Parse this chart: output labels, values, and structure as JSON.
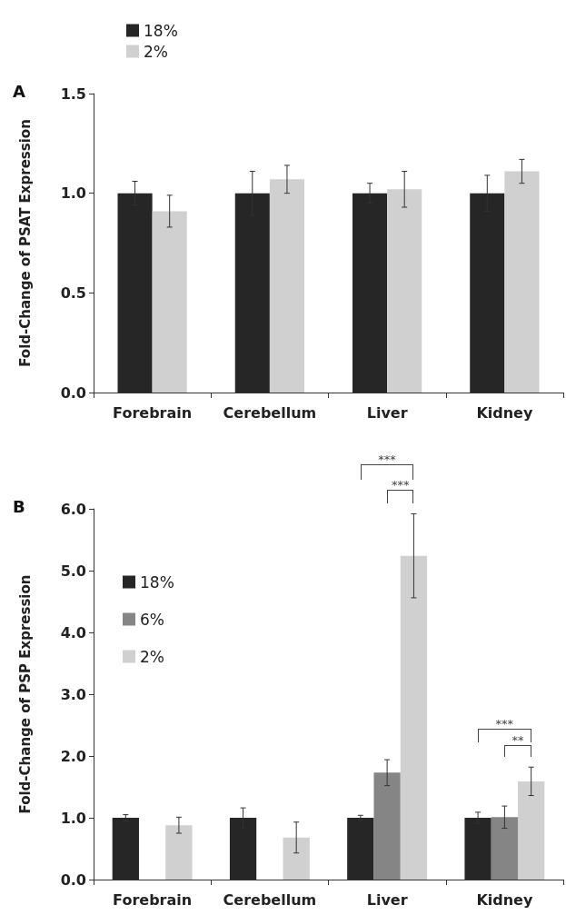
{
  "chart_data": [
    {
      "type": "bar",
      "ylabel": "Fold-Change of PSAT Expression",
      "categories": [
        "Forebrain",
        "Cerebellum",
        "Liver",
        "Kidney"
      ],
      "series": [
        {
          "name": "18%",
          "color": "#262626",
          "values": [
            1.0,
            1.0,
            1.0,
            1.0
          ],
          "errors": [
            0.06,
            0.11,
            0.05,
            0.09
          ]
        },
        {
          "name": "2%",
          "color": "#d0d0d0",
          "values": [
            0.91,
            1.07,
            1.02,
            1.11
          ],
          "errors": [
            0.08,
            0.07,
            0.09,
            0.06
          ]
        }
      ],
      "ylim": [
        0,
        1.5
      ],
      "yticks": [
        {
          "value": 0,
          "label": "0.0"
        },
        {
          "value": 0.5,
          "label": "0.5"
        },
        {
          "value": 1,
          "label": "1.0"
        },
        {
          "value": 1.5,
          "label": "1.5"
        }
      ],
      "grid": false,
      "legend": "top left",
      "annotations": [
        "A"
      ]
    },
    {
      "type": "bar",
      "ylabel": "Fold-Change of PSP Expression",
      "categories": [
        "Forebrain",
        "Cerebellum",
        "Liver",
        "Kidney"
      ],
      "series": [
        {
          "name": "18%",
          "color": "#262626",
          "values": [
            1.0,
            1.0,
            1.0,
            1.0
          ],
          "errors": [
            0.05,
            0.16,
            0.04,
            0.09
          ]
        },
        {
          "name": "6%",
          "color": "#858585",
          "values": [
            null,
            null,
            1.73,
            1.01
          ],
          "errors": [
            null,
            null,
            0.21,
            0.18
          ]
        },
        {
          "name": "2%",
          "color": "#d0d0d0",
          "values": [
            0.88,
            0.68,
            5.24,
            1.59
          ],
          "errors": [
            0.13,
            0.25,
            0.68,
            0.23
          ]
        }
      ],
      "ylim": [
        0,
        6
      ],
      "yticks": [
        {
          "value": 0,
          "label": "0.0"
        },
        {
          "value": 1,
          "label": "1.0"
        },
        {
          "value": 2,
          "label": "2.0"
        },
        {
          "value": 3,
          "label": "3.0"
        },
        {
          "value": 4,
          "label": "4.0"
        },
        {
          "value": 5,
          "label": "5.0"
        },
        {
          "value": 6,
          "label": "6.0"
        }
      ],
      "grid": false,
      "legend": "top left",
      "annotations": [
        "B",
        "***",
        "***",
        "***",
        "**"
      ]
    }
  ]
}
